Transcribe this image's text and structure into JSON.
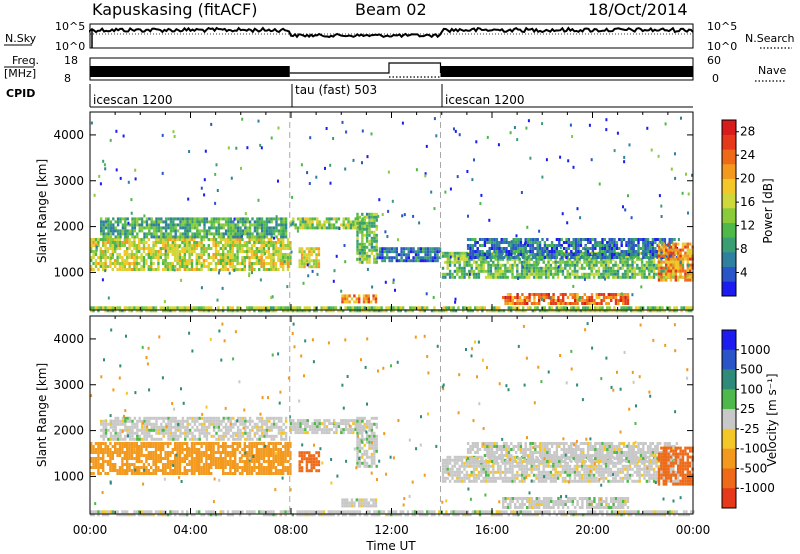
{
  "header": {
    "station": "Kapuskasing (fitACF)",
    "beam": "Beam 02",
    "date": "18/Oct/2014"
  },
  "params": {
    "nsky_label": "N.Sky",
    "nsearch_label": "N.Search",
    "left_ticks": [
      "10^5",
      "10^0"
    ],
    "right_ticks": [
      "10^5",
      "10^0"
    ],
    "freq_label": "Freq.",
    "freq_unit": "[MHz]",
    "freq_ticks": [
      "18",
      "8"
    ],
    "nave_label": "Nave",
    "nave_ticks": [
      "60",
      "0"
    ],
    "cpid_label": "CPID",
    "cpid_segments": [
      {
        "label": "icescan 1200",
        "start_hour": 0,
        "end_hour": 7.95
      },
      {
        "label": "tau (fast) 503",
        "start_hour": 7.95,
        "end_hour": 13.95
      },
      {
        "label": "icescan 1200",
        "start_hour": 13.95,
        "end_hour": 24
      }
    ]
  },
  "chart_data": [
    {
      "type": "heatmap",
      "quantity": "Power",
      "ylabel": "Slant Range [km]",
      "xlabel": "Time UT",
      "x_ticks": [
        "00:00",
        "04:00",
        "08:00",
        "12:00",
        "16:00",
        "20:00",
        "00:00"
      ],
      "x_range_hours": [
        0,
        24
      ],
      "y_ticks": [
        1000,
        2000,
        3000,
        4000
      ],
      "ylim": [
        180,
        4500
      ],
      "colorbar": {
        "label": "Power [dB]",
        "ticks": [
          "4",
          "8",
          "12",
          "16",
          "20",
          "24",
          "28"
        ],
        "range": [
          0,
          30
        ],
        "colors": [
          "#1c1cf0",
          "#2a55c8",
          "#2f7fa0",
          "#3a9e73",
          "#4fb84a",
          "#8acb3a",
          "#cfd83a",
          "#f3c728",
          "#f39a1e",
          "#ee6a18",
          "#e6391b",
          "#d81b1b"
        ]
      },
      "bands": [
        {
          "t0": 0.0,
          "t1": 8.0,
          "r0": 1050,
          "r1": 1750,
          "value": 16
        },
        {
          "t0": 0.4,
          "t1": 7.8,
          "r0": 1800,
          "r1": 2200,
          "value": 10
        },
        {
          "t0": 7.95,
          "t1": 10.9,
          "r0": 1950,
          "r1": 2200,
          "value": 14
        },
        {
          "t0": 10.6,
          "t1": 11.4,
          "r0": 1200,
          "r1": 2300,
          "value": 12
        },
        {
          "t0": 11.4,
          "t1": 13.9,
          "r0": 1250,
          "r1": 1550,
          "value": 6
        },
        {
          "t0": 10.0,
          "t1": 11.4,
          "r0": 350,
          "r1": 520,
          "value": 22
        },
        {
          "t0": 8.3,
          "t1": 9.1,
          "r0": 1100,
          "r1": 1550,
          "value": 18
        },
        {
          "t0": 14.0,
          "t1": 23.6,
          "r0": 900,
          "r1": 1450,
          "value": 12
        },
        {
          "t0": 15.0,
          "t1": 23.4,
          "r0": 1350,
          "r1": 1750,
          "value": 6
        },
        {
          "t0": 16.4,
          "t1": 21.4,
          "r0": 350,
          "r1": 550,
          "value": 24
        },
        {
          "t0": 22.6,
          "t1": 24.0,
          "r0": 850,
          "r1": 1650,
          "value": 22
        },
        {
          "t0": 0.0,
          "t1": 24.0,
          "r0": 180,
          "r1": 260,
          "value": 14
        }
      ]
    },
    {
      "type": "heatmap",
      "quantity": "Velocity",
      "ylabel": "Slant Range [km]",
      "xlabel": "Time UT",
      "x_ticks": [
        "00:00",
        "04:00",
        "08:00",
        "12:00",
        "16:00",
        "20:00",
        "00:00"
      ],
      "x_range_hours": [
        0,
        24
      ],
      "y_ticks": [
        1000,
        2000,
        3000,
        4000
      ],
      "ylim": [
        180,
        4500
      ],
      "colorbar": {
        "label": "Velocity [m s⁻¹]",
        "ticks": [
          "1000",
          "500",
          "100",
          "25",
          "-25",
          "-100",
          "-500",
          "-1000"
        ],
        "colors": [
          "#1c1cf0",
          "#2a55c8",
          "#2f8a7a",
          "#4fb84a",
          "#c8c8c8",
          "#f3c728",
          "#f39a1e",
          "#ee6a18",
          "#e6391b"
        ]
      },
      "bands": [
        {
          "t0": 0.0,
          "t1": 8.0,
          "r0": 1050,
          "r1": 1750,
          "value": -150
        },
        {
          "t0": 0.4,
          "t1": 7.8,
          "r0": 1800,
          "r1": 2300,
          "value": 0
        },
        {
          "t0": 7.95,
          "t1": 10.9,
          "r0": 1950,
          "r1": 2250,
          "value": 0
        },
        {
          "t0": 10.6,
          "t1": 11.4,
          "r0": 1200,
          "r1": 2300,
          "value": 0
        },
        {
          "t0": 8.3,
          "t1": 9.1,
          "r0": 1100,
          "r1": 1550,
          "value": -400
        },
        {
          "t0": 10.0,
          "t1": 11.4,
          "r0": 350,
          "r1": 520,
          "value": 0
        },
        {
          "t0": 14.0,
          "t1": 23.6,
          "r0": 900,
          "r1": 1450,
          "value": 0
        },
        {
          "t0": 15.0,
          "t1": 23.4,
          "r0": 1350,
          "r1": 1750,
          "value": 0
        },
        {
          "t0": 16.4,
          "t1": 21.4,
          "r0": 350,
          "r1": 550,
          "value": 0
        },
        {
          "t0": 22.6,
          "t1": 24.0,
          "r0": 850,
          "r1": 1650,
          "value": -400
        },
        {
          "t0": 0.0,
          "t1": 24.0,
          "r0": 180,
          "r1": 260,
          "value": 0
        }
      ]
    }
  ]
}
